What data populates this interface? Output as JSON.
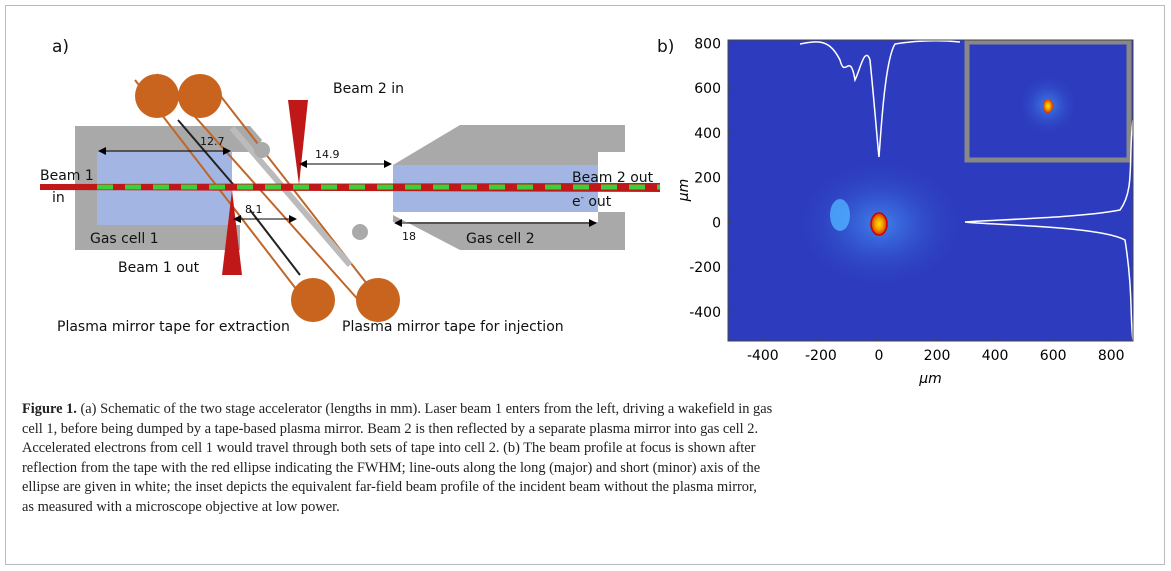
{
  "figure": {
    "panel_a": {
      "label": "a)",
      "beam1_in": [
        "Beam 1",
        "in"
      ],
      "beam2_in": "Beam 2 in",
      "beam2_out": "Beam 2 out",
      "e_out": {
        "base": "e",
        "sup": "-",
        "rest": " out"
      },
      "beam1_out": "Beam 1 out",
      "gas_cell_1": "Gas cell 1",
      "gas_cell_2": "Gas cell 2",
      "dims": [
        "12.7",
        "14.9",
        "8.1",
        "18"
      ],
      "tape_extraction": "Plasma mirror tape for extraction",
      "tape_injection": "Plasma mirror tape for injection"
    },
    "panel_b": {
      "label": "b)",
      "xlabel": "μm",
      "ylabel": "μm",
      "xlim": [
        -520,
        875
      ],
      "ylim": [
        -530,
        815
      ],
      "xticks": [
        -400,
        -200,
        0,
        200,
        400,
        600,
        800
      ],
      "yticks": [
        -400,
        -200,
        0,
        200,
        400,
        600,
        800
      ]
    },
    "caption": {
      "label": "Figure 1.",
      "lines": [
        " (a) Schematic of the two stage accelerator (lengths in mm). Laser beam 1 enters from the left, driving a wakefield in gas",
        "cell 1, before being dumped by a tape-based plasma mirror. Beam 2 is then reflected by a separate plasma mirror into gas cell 2.",
        "Accelerated electrons from cell 1 would travel through both sets of tape into cell 2. (b) The beam profile at focus is shown after",
        "reflection from the tape with the red ellipse indicating the FWHM; line-outs along the long (major) and short (minor) axis of the",
        "ellipse are given in white; the inset depicts the equivalent far-field beam profile of the incident beam without the plasma mirror,",
        "as measured with a microscope objective at low power."
      ]
    }
  }
}
